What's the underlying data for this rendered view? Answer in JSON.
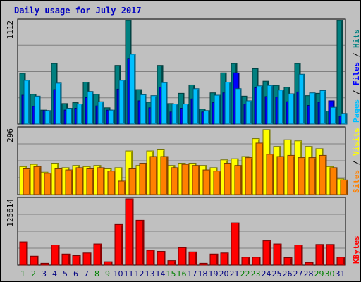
{
  "chart_data": {
    "type": "bar",
    "title": "Daily usage for July 2017",
    "x": [
      "1",
      "2",
      "3",
      "4",
      "5",
      "6",
      "7",
      "8",
      "9",
      "10",
      "11",
      "12",
      "13",
      "14",
      "15",
      "16",
      "17",
      "18",
      "19",
      "20",
      "21",
      "22",
      "23",
      "24",
      "25",
      "26",
      "27",
      "28",
      "29",
      "30",
      "31"
    ],
    "weekend_days": [
      "1",
      "2",
      "8",
      "9",
      "15",
      "16",
      "22",
      "23",
      "29",
      "30"
    ],
    "panels": [
      {
        "id": "top",
        "max_label": "1112",
        "ylim": [
          0,
          1112
        ],
        "legend": [
          "Pages",
          "Files",
          "Hits"
        ],
        "legend_separator": " / ",
        "series": [
          {
            "name": "Hits",
            "color": "#008080",
            "values": [
              545,
              320,
              150,
              650,
              220,
              230,
              450,
              320,
              175,
              630,
              1112,
              370,
              235,
              630,
              220,
              330,
              420,
              160,
              335,
              550,
              650,
              300,
              595,
              460,
              415,
              395,
              650,
              305,
              330,
              140,
              1112
            ]
          },
          {
            "name": "Files",
            "color": "#0000ff",
            "values": [
              310,
              190,
              145,
              370,
              150,
              170,
              285,
              195,
              150,
              375,
              705,
              250,
              175,
              395,
              130,
              170,
              270,
              130,
              230,
              335,
              550,
              215,
              390,
              295,
              290,
              240,
              345,
              200,
              235,
              250,
              85
            ]
          },
          {
            "name": "Pages",
            "color": "#00c0ff",
            "values": [
              470,
              300,
              145,
              440,
              170,
              215,
              350,
              240,
              150,
              470,
              750,
              315,
              305,
              445,
              215,
              215,
              380,
              145,
              310,
              450,
              380,
              250,
              410,
              415,
              365,
              325,
              535,
              335,
              360,
              180,
              115
            ]
          }
        ]
      },
      {
        "id": "middle",
        "max_label": "296",
        "ylim": [
          0,
          296
        ],
        "legend": [
          "Sites",
          "Visits"
        ],
        "legend_separator": " / ",
        "series": [
          {
            "name": "Visits",
            "color": "#ffff00",
            "values": [
              125,
              135,
              100,
              140,
              120,
              130,
              125,
              130,
              115,
              120,
              195,
              130,
              195,
              200,
              130,
              140,
              140,
              130,
              120,
              155,
              160,
              170,
              250,
              290,
              215,
              245,
              240,
              215,
              205,
              125,
              70
            ]
          },
          {
            "name": "Sites",
            "color": "#ff8000",
            "values": [
              115,
              125,
              95,
              115,
              110,
              120,
              115,
              120,
              105,
              60,
              115,
              140,
              170,
              170,
              120,
              135,
              130,
              110,
              105,
              140,
              130,
              165,
              230,
              180,
              170,
              175,
              165,
              165,
              175,
              120,
              65
            ]
          }
        ]
      },
      {
        "id": "bottom",
        "max_label": "125614",
        "ylim": [
          0,
          125614
        ],
        "legend": [
          "KBytes"
        ],
        "legend_separator": "",
        "series": [
          {
            "name": "KBytes",
            "color": "#ff0000",
            "values": [
              44000,
              17000,
              3500,
              38000,
              21000,
              18000,
              23000,
              40000,
              6500,
              77000,
              125614,
              85000,
              28000,
              26000,
              8500,
              33000,
              25000,
              3500,
              21000,
              23000,
              80000,
              15000,
              15000,
              46000,
              40000,
              14000,
              38000,
              5000,
              39000,
              39000,
              15000
            ]
          }
        ]
      }
    ],
    "colors": {
      "background": "#c0c0c0",
      "plot": "#c0c0c0",
      "grid": "#808080",
      "title": "#0000c0",
      "day_weekday": "#000080",
      "day_weekend": "#008000",
      "separator": "#000000"
    }
  }
}
